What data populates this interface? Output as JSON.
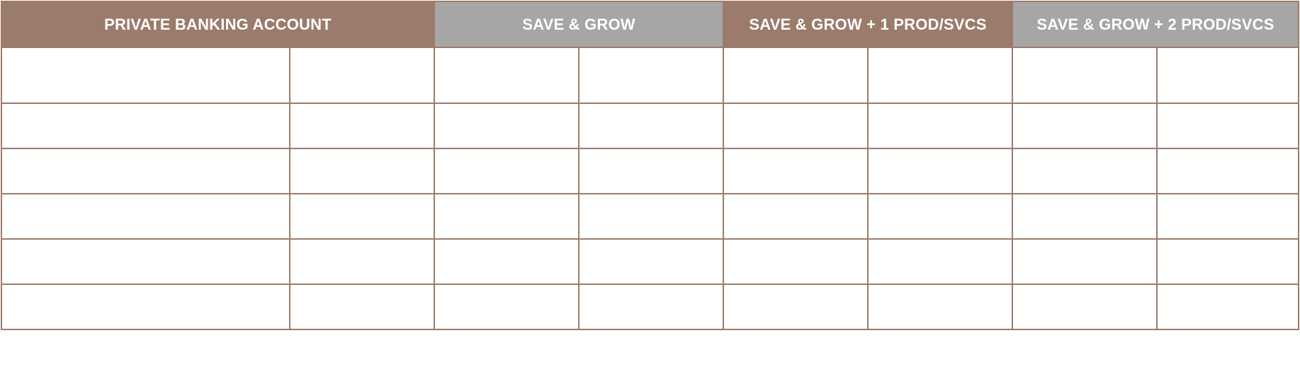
{
  "table": {
    "header_groups": [
      {
        "label": "PRIVATE BANKING ACCOUNT",
        "color": "#9b7b6b"
      },
      {
        "label": "SAVE & GROW",
        "color": "#a6a6a6"
      },
      {
        "label": "SAVE & GROW + 1 PROD/SVCS",
        "color": "#9b7b6b"
      },
      {
        "label": "SAVE & GROW + 2 PROD/SVCS",
        "color": "#a6a6a6"
      }
    ],
    "border_color": "#9b7b6b",
    "rows": [
      [
        "",
        "",
        "",
        "",
        "",
        "",
        "",
        ""
      ],
      [
        "",
        "",
        "",
        "",
        "",
        "",
        "",
        ""
      ],
      [
        "",
        "",
        "",
        "",
        "",
        "",
        "",
        ""
      ],
      [
        "",
        "",
        "",
        "",
        "",
        "",
        "",
        ""
      ],
      [
        "",
        "",
        "",
        "",
        "",
        "",
        "",
        ""
      ],
      [
        "",
        "",
        "",
        "",
        "",
        "",
        "",
        ""
      ]
    ]
  }
}
